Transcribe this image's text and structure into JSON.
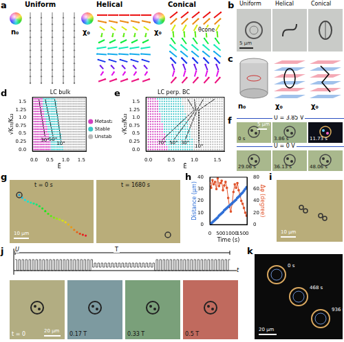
{
  "panels": [
    {
      "letter": "a",
      "titles": [
        "Uniform",
        "Helical",
        "Conical"
      ],
      "symbols": [
        "n₀",
        "χ₀",
        "χ₀"
      ],
      "angle_label": "θcone"
    },
    {
      "letter": "b",
      "titles": [
        "Uniform",
        "Helical",
        "Conical"
      ],
      "scale_bar": "5 μm"
    },
    {
      "letter": "c",
      "symbols": [
        "n₀",
        "χ₀",
        "χ₀"
      ]
    },
    {
      "letter": "f",
      "rows": [
        {
          "voltage": "U = 3.85 V",
          "times": [
            "0 s",
            "3.86 s",
            "11.73 s"
          ]
        },
        {
          "voltage": "U = 0 V",
          "times": [
            "29.06 s",
            "36.13 s",
            "48.06 s"
          ]
        }
      ],
      "scale_bar": "5 μm"
    },
    {
      "letter": "g",
      "times": [
        "t = 0 s",
        "t = 1680 s"
      ],
      "scale_bar": "10 μm"
    },
    {
      "letter": "i",
      "scale_bar": "10 μm"
    },
    {
      "letter": "j",
      "axis_labels": [
        "U",
        "T",
        "t"
      ],
      "times": [
        "t = 0",
        "0.17 T",
        "0.33 T",
        "0.5 T"
      ],
      "scale_bar": "20 μm"
    },
    {
      "letter": "k",
      "times": [
        "0 s",
        "468 s",
        "936 s"
      ],
      "scale_bar": "20 μm"
    }
  ],
  "chart_data": [
    {
      "panel": "d",
      "type": "scatter",
      "title": "LC bulk",
      "x_label": "Ē",
      "y_label": "√K₃₃/K₂₂",
      "xlim": [
        -0.05,
        1.65
      ],
      "ylim": [
        -0.05,
        1.65
      ],
      "xticks": [
        {
          "value": 0,
          "label": "0.0"
        },
        0.5,
        {
          "value": 1,
          "label": "1.0"
        },
        1.5
      ],
      "yticks": [
        {
          "value": 0,
          "label": "0.0"
        },
        0.25,
        0.5,
        0.75,
        {
          "value": 1,
          "label": "1.0"
        },
        1.25,
        1.5
      ],
      "legend": "right",
      "x": [
        0,
        0.05,
        0.1,
        0.15,
        0.2,
        0.25,
        0.3,
        0.35,
        0.4,
        0.45,
        0.5,
        0.55,
        0.6,
        0.65,
        0.7,
        0.75,
        0.8,
        0.85,
        0.9,
        0.95,
        1,
        1.05,
        1.1,
        1.15,
        1.2,
        1.25,
        1.3,
        1.35,
        1.4,
        1.45,
        1.5,
        1.55,
        1.6
      ],
      "y": [
        0,
        0.08,
        0.16,
        0.24,
        0.32,
        0.4,
        0.48,
        0.56,
        0.64,
        0.72,
        0.8,
        0.88,
        0.96,
        1.04,
        1.12,
        1.2,
        1.28,
        1.36,
        1.44,
        1.52,
        1.6
      ],
      "series": [
        {
          "name": "Metastable",
          "color": "#d23fc0",
          "upper_edge": [
            0.55,
            0.55,
            0.53,
            0.52,
            0.5,
            0.48,
            0.47,
            0.45,
            0.43,
            0.42,
            0.4,
            0.38,
            0.37,
            0.35,
            0.33,
            0.32,
            0.3,
            0.3,
            0.28,
            0.28,
            0.27
          ]
        },
        {
          "name": "Stable",
          "color": "#3ec6c9",
          "upper_edge": [
            0.92,
            0.92,
            0.9,
            0.9,
            0.88,
            0.87,
            0.86,
            0.85,
            0.83,
            0.82,
            0.8,
            0.8,
            0.78,
            0.77,
            0.76,
            0.75,
            0.74,
            0.73,
            0.72,
            0.72,
            0.7
          ]
        },
        {
          "name": "Unstable",
          "color": "#b8b8b8"
        }
      ],
      "contours": [
        {
          "label": "30°",
          "points": [
            [
              0.15,
              1.6
            ],
            [
              0.25,
              1.0
            ],
            [
              0.35,
              0.4
            ]
          ]
        },
        {
          "label": "50°",
          "points": [
            [
              0.35,
              1.6
            ],
            [
              0.48,
              1.0
            ],
            [
              0.6,
              0.42
            ]
          ]
        },
        {
          "label": "10°",
          "points": [
            [
              0.65,
              1.6
            ],
            [
              0.75,
              1.0
            ],
            [
              0.85,
              0.28
            ]
          ]
        }
      ]
    },
    {
      "panel": "e",
      "type": "scatter",
      "title": "LC perp. BC",
      "x_label": "Ē",
      "y_label": "√K₃₃/K₂₂",
      "xlim": [
        -0.05,
        1.65
      ],
      "ylim": [
        -0.05,
        1.65
      ],
      "xticks": [
        {
          "value": 0,
          "label": "0.0"
        },
        0.5,
        {
          "value": 1,
          "label": "1.0"
        },
        1.5
      ],
      "yticks": [
        {
          "value": 0,
          "label": "0.0"
        },
        0.25,
        0.5,
        0.75,
        {
          "value": 1,
          "label": "1.0"
        },
        1.25,
        1.5
      ],
      "x": [
        0,
        0.05,
        0.1,
        0.15,
        0.2,
        0.25,
        0.3,
        0.35,
        0.4,
        0.45,
        0.5,
        0.55,
        0.6,
        0.65,
        0.7,
        0.75,
        0.8,
        0.85,
        0.9,
        0.95,
        1,
        1.05,
        1.1,
        1.15,
        1.2,
        1.25,
        1.3,
        1.35,
        1.4,
        1.45,
        1.5,
        1.55,
        1.6
      ],
      "y": [
        0,
        0.08,
        0.16,
        0.24,
        0.32,
        0.4,
        0.48,
        0.56,
        0.64,
        0.72,
        0.8,
        0.88,
        0.96,
        1.04,
        1.12,
        1.2,
        1.28,
        1.36,
        1.44,
        1.52,
        1.6
      ],
      "series": [
        {
          "name": "Metastable",
          "color": "#d23fc0",
          "upper_edge": [
            0.42,
            0.42,
            0.4,
            0.4,
            0.38,
            0.37,
            0.36,
            0.35,
            0.33,
            0.32,
            0.31,
            0.3,
            0.28,
            0.27,
            0.26,
            0.25,
            0.24,
            0.23,
            0.22,
            0.22,
            0.2
          ]
        },
        {
          "name": "Stable",
          "color": "#3ec6c9",
          "upper_edge": [
            1.0,
            1.0,
            1.0,
            0.98,
            0.97,
            0.95,
            0.95,
            0.93,
            0.92,
            0.9,
            0.88,
            0.87,
            0.85,
            0.83,
            0.82,
            0.8,
            0.78,
            0.77,
            0.75,
            0.74,
            0.72
          ]
        },
        {
          "name": "Unstable",
          "color": "#b8b8b8"
        }
      ],
      "contours": [
        {
          "label": "70°",
          "points": [
            [
              0.85,
              1.6
            ],
            [
              1.0,
              1.25
            ],
            [
              0.3,
              0.3
            ]
          ]
        },
        {
          "label": "50°",
          "points": [
            [
              1.0,
              1.6
            ],
            [
              1.03,
              1.25
            ],
            [
              0.55,
              0.3
            ]
          ]
        },
        {
          "label": "30°",
          "points": [
            [
              1.2,
              1.6
            ],
            [
              1.06,
              1.25
            ],
            [
              0.8,
              0.3
            ]
          ]
        },
        {
          "label": "10°",
          "points": [
            [
              1.45,
              1.6
            ],
            [
              1.1,
              1.25
            ],
            [
              1.1,
              0.2
            ]
          ]
        }
      ]
    },
    {
      "panel": "h",
      "type": "line",
      "x_label": "Time (s)",
      "y_label": "Distance (μm)",
      "y2_label": "Δφ (degree)",
      "xlim": [
        0,
        1700
      ],
      "xticks": [
        0,
        500,
        1000,
        1500
      ],
      "ylim": [
        0,
        40
      ],
      "yticks": [
        0,
        10,
        20,
        30,
        40
      ],
      "y2lim": [
        0,
        80
      ],
      "y2ticks": [
        0,
        20,
        40,
        60,
        80
      ],
      "x": [
        0,
        60,
        120,
        180,
        240,
        300,
        360,
        420,
        480,
        540,
        600,
        660,
        720,
        780,
        840,
        900,
        960,
        1020,
        1080,
        1140,
        1200,
        1260,
        1320,
        1380,
        1440,
        1500,
        1560,
        1620,
        1680
      ],
      "series": [
        {
          "color": "#2f6fd6",
          "marker": "circle",
          "values": [
            0,
            1,
            2,
            3,
            4,
            5,
            6,
            7.5,
            8.5,
            9.5,
            10.5,
            12,
            13,
            14,
            15,
            16,
            17,
            18,
            19,
            20,
            21,
            22.5,
            23.5,
            24.5,
            26,
            27,
            28.5,
            30,
            31.5
          ]
        },
        {
          "color": "#e0522a",
          "marker": "square",
          "axis": "y2",
          "values": [
            70,
            62,
            75,
            68,
            72,
            60,
            78,
            65,
            70,
            74,
            58,
            66,
            72,
            62,
            45,
            30,
            22,
            35,
            55,
            68,
            62,
            70,
            58,
            50,
            40,
            35,
            28,
            20,
            15
          ]
        }
      ]
    }
  ]
}
